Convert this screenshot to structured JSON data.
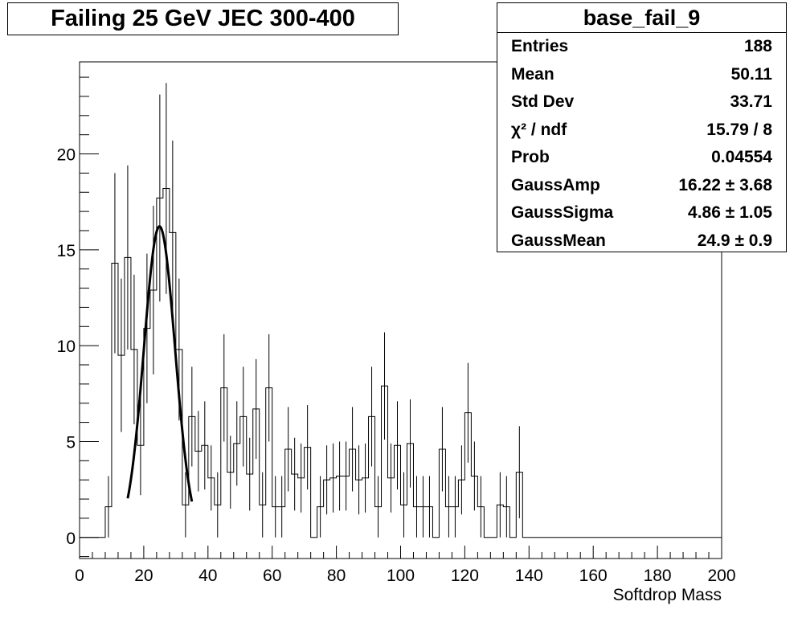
{
  "title": "Failing 25 GeV JEC 300-400",
  "stats": {
    "name": "base_fail_9",
    "rows": [
      {
        "label": "Entries",
        "value": "188"
      },
      {
        "label": "Mean",
        "value": "50.11"
      },
      {
        "label": "Std Dev",
        "value": "33.71"
      },
      {
        "label": "χ² / ndf",
        "value": "15.79 / 8"
      },
      {
        "label": "Prob",
        "value": "0.04554"
      },
      {
        "label": "GaussAmp",
        "value": "16.22 ± 3.68"
      },
      {
        "label": "GaussSigma",
        "value": "4.86 ± 1.05"
      },
      {
        "label": "GaussMean",
        "value": "24.9 ± 0.9"
      }
    ]
  },
  "chart_data": {
    "type": "bar",
    "xlabel": "Softdrop Mass",
    "ylabel": "",
    "xlim": [
      0,
      200
    ],
    "ylim": [
      -1.1,
      24.8
    ],
    "xticks": [
      "0",
      "20",
      "40",
      "60",
      "80",
      "100",
      "120",
      "140",
      "160",
      "180",
      "200"
    ],
    "yticks": [
      "0",
      "5",
      "10",
      "15",
      "20"
    ],
    "bin_width": 2,
    "bin_start": 8,
    "values": [
      1.6,
      14.3,
      9.5,
      14.6,
      9.8,
      4.8,
      10.9,
      12.9,
      17.7,
      18.2,
      15.9,
      9.8,
      1.7,
      6.3,
      4.5,
      4.8,
      3.1,
      1.7,
      7.8,
      3.4,
      4.9,
      6.3,
      3.3,
      6.7,
      1.7,
      7.8,
      1.6,
      1.6,
      4.6,
      3.3,
      3.1,
      4.7,
      0.0,
      1.6,
      3.0,
      3.1,
      3.2,
      3.2,
      4.6,
      3.0,
      3.1,
      6.3,
      1.6,
      7.9,
      3.1,
      4.8,
      1.7,
      4.9,
      1.6,
      1.6,
      1.6,
      0.0,
      4.6,
      1.6,
      1.6,
      3.0,
      6.5,
      3.2,
      1.6,
      0.0,
      0.0,
      1.7,
      1.6,
      0.0,
      3.4
    ],
    "errors": [
      1.6,
      4.7,
      4.0,
      4.8,
      3.9,
      2.6,
      3.9,
      4.4,
      5.4,
      5.5,
      4.8,
      3.7,
      1.7,
      2.6,
      2.1,
      2.3,
      1.7,
      1.7,
      2.8,
      1.9,
      2.2,
      2.6,
      1.9,
      2.6,
      1.7,
      2.8,
      1.6,
      1.6,
      2.2,
      1.9,
      1.8,
      2.2,
      0.0,
      1.6,
      1.8,
      1.8,
      1.8,
      1.8,
      2.2,
      1.8,
      1.8,
      2.6,
      1.6,
      2.8,
      1.8,
      2.3,
      1.7,
      2.3,
      1.6,
      1.6,
      1.6,
      0.0,
      2.2,
      1.6,
      1.6,
      1.8,
      2.6,
      1.8,
      1.6,
      0.0,
      0.0,
      1.7,
      1.6,
      0.0,
      2.4
    ],
    "fit": {
      "function": "gaus",
      "amp": 16.22,
      "mean": 24.9,
      "sigma": 4.86,
      "range": [
        15,
        35
      ]
    },
    "legend": "top-right"
  }
}
